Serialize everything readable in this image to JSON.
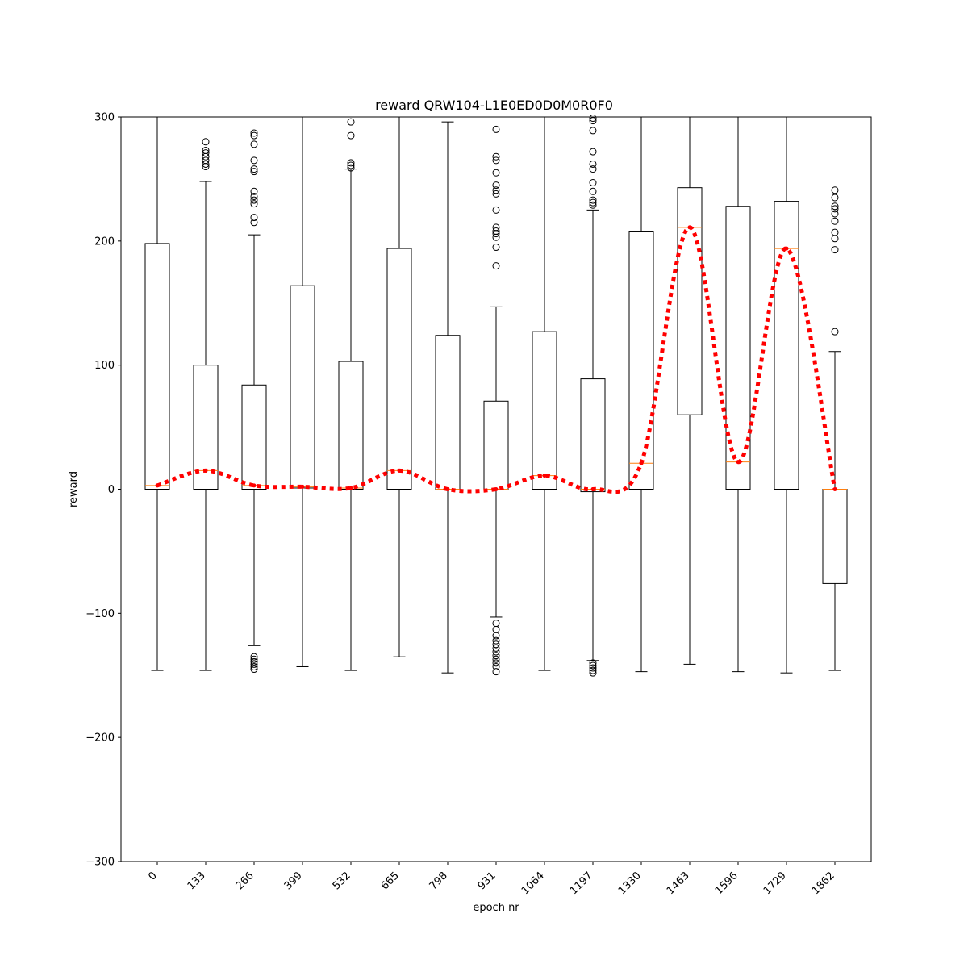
{
  "chart_data": {
    "type": "box",
    "title": "reward QRW104-L1E0ED0D0M0R0F0",
    "xlabel": "epoch nr",
    "ylabel": "reward",
    "ylim": [
      -300,
      300
    ],
    "yticks": [
      -300,
      -200,
      -100,
      0,
      100,
      200,
      300
    ],
    "ytick_labels": [
      "−300",
      "−200",
      "−100",
      "0",
      "100",
      "200",
      "300"
    ],
    "categories": [
      "0",
      "133",
      "266",
      "399",
      "532",
      "665",
      "798",
      "931",
      "1064",
      "1197",
      "1330",
      "1463",
      "1596",
      "1729",
      "1862"
    ],
    "boxes": [
      {
        "q1": 0,
        "median": 3,
        "q3": 198,
        "whislo": -146,
        "whishi": 300,
        "fliers": []
      },
      {
        "q1": 0,
        "median": 15,
        "q3": 100,
        "whislo": -146,
        "whishi": 248,
        "fliers": [
          260,
          262,
          265,
          268,
          271,
          273,
          280
        ]
      },
      {
        "q1": 0,
        "median": 3,
        "q3": 84,
        "whislo": -126,
        "whishi": 205,
        "fliers": [
          215,
          219,
          230,
          233,
          236,
          240,
          256,
          258,
          265,
          278,
          285,
          287,
          -135,
          -137,
          -139,
          -141,
          -143,
          -145
        ]
      },
      {
        "q1": 1,
        "median": 2,
        "q3": 164,
        "whislo": -143,
        "whishi": 300,
        "fliers": []
      },
      {
        "q1": 0,
        "median": 1,
        "q3": 103,
        "whislo": -146,
        "whishi": 258,
        "fliers": [
          259,
          261,
          263,
          285,
          296
        ]
      },
      {
        "q1": 0,
        "median": 15,
        "q3": 194,
        "whislo": -135,
        "whishi": 300,
        "fliers": []
      },
      {
        "q1": 0,
        "median": 0,
        "q3": 124,
        "whislo": -148,
        "whishi": 296,
        "fliers": []
      },
      {
        "q1": 0,
        "median": 0,
        "q3": 71,
        "whislo": -103,
        "whishi": 147,
        "fliers": [
          180,
          195,
          203,
          206,
          208,
          211,
          225,
          238,
          241,
          245,
          255,
          265,
          268,
          290,
          -108,
          -113,
          -118,
          -122,
          -125,
          -128,
          -131,
          -134,
          -137,
          -140,
          -143,
          -147
        ]
      },
      {
        "q1": 0,
        "median": 11,
        "q3": 127,
        "whislo": -146,
        "whishi": 300,
        "fliers": []
      },
      {
        "q1": -2,
        "median": 0,
        "q3": 89,
        "whislo": -138,
        "whishi": 225,
        "fliers": [
          229,
          231,
          233,
          240,
          247,
          258,
          262,
          272,
          289,
          297,
          299,
          -140,
          -142,
          -144,
          -146,
          -148
        ]
      },
      {
        "q1": 0,
        "median": 21,
        "q3": 208,
        "whislo": -147,
        "whishi": 300,
        "fliers": []
      },
      {
        "q1": 60,
        "median": 211,
        "q3": 243,
        "whislo": -141,
        "whishi": 300,
        "fliers": []
      },
      {
        "q1": 0,
        "median": 22,
        "q3": 228,
        "whislo": -147,
        "whishi": 300,
        "fliers": []
      },
      {
        "q1": 0,
        "median": 194,
        "q3": 232,
        "whislo": -148,
        "whishi": 300,
        "fliers": []
      },
      {
        "q1": -76,
        "median": 0,
        "q3": 0,
        "whislo": -146,
        "whishi": 111,
        "fliers": [
          127,
          193,
          202,
          207,
          216,
          222,
          226,
          228,
          235,
          241
        ]
      }
    ],
    "trend_line": {
      "style": "dotted",
      "color": "#ff0000",
      "values": [
        3,
        15,
        3,
        2,
        1,
        15,
        0,
        0,
        11,
        0,
        21,
        211,
        22,
        194,
        0
      ]
    },
    "colors": {
      "box": "#000000",
      "median": "#ff7f0e",
      "trend": "#ff0000"
    },
    "grid": false
  }
}
